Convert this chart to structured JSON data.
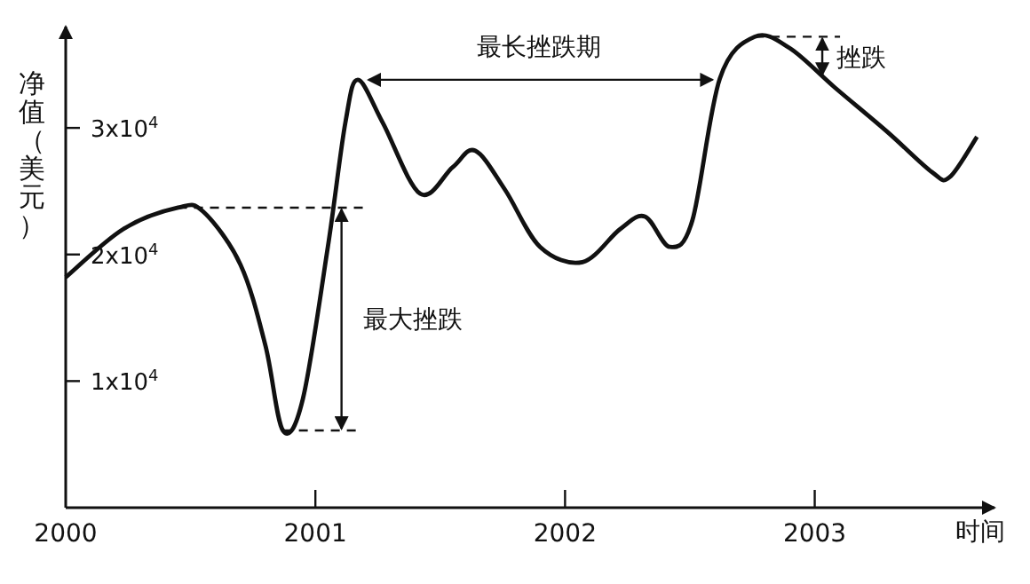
{
  "chart_data": {
    "type": "line",
    "ylabel": "净值（美元）",
    "xlabel": "时间",
    "x": [
      2000,
      2000.23,
      2000.45,
      2000.55,
      2000.7,
      2000.8,
      2000.87,
      2000.95,
      2001.05,
      2001.12,
      2001.17,
      2001.27,
      2001.42,
      2001.55,
      2001.64,
      2001.76,
      2001.9,
      2002.07,
      2002.22,
      2002.32,
      2002.42,
      2002.51,
      2002.62,
      2002.76,
      2002.9,
      2003.08,
      2003.29,
      2003.47,
      2003.54,
      2003.65
    ],
    "series": [
      {
        "color": "#111111",
        "values": [
          18200,
          22000,
          23700,
          23400,
          19200,
          12800,
          6100,
          8600,
          20600,
          30400,
          33800,
          30400,
          24800,
          26900,
          28200,
          25100,
          20600,
          19400,
          22000,
          23000,
          20600,
          22700,
          33900,
          37200,
          36300,
          33200,
          29700,
          26500,
          26100,
          29300
        ]
      }
    ],
    "xlim": [
      2000,
      2003.72
    ],
    "ylim": [
      0,
      38000
    ],
    "xticks": [
      2000,
      2001,
      2002,
      2003
    ],
    "yticks": [
      {
        "value": 10000,
        "label": "1x10$^{4}$"
      },
      {
        "value": 20000,
        "label": "2x10$^{4}$"
      },
      {
        "value": 30000,
        "label": "3x10$^{4}$"
      }
    ],
    "annotations": [
      "最大挫跌",
      "最长挫跌期",
      {
        "text": "挫跌",
        "x": 2002.76,
        "y": 37200
      }
    ],
    "grid": false,
    "marker": "none",
    "line_style": "solid"
  }
}
